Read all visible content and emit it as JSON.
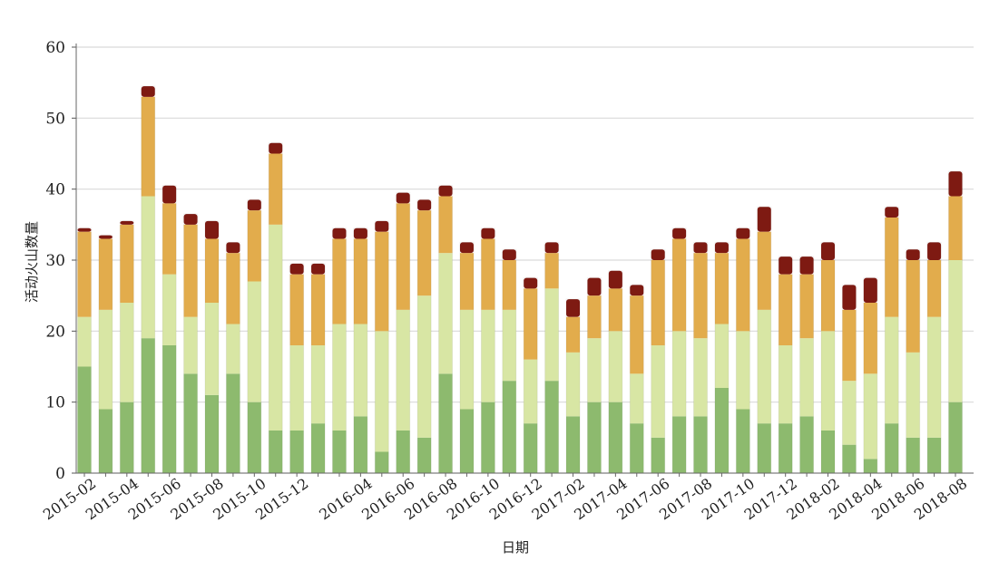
{
  "chart_data": {
    "type": "bar",
    "stacked": true,
    "title": "",
    "xlabel": "日期",
    "ylabel": "活动火山数量",
    "ylim": [
      0,
      60
    ],
    "yticks": [
      0,
      10,
      20,
      30,
      40,
      50,
      60
    ],
    "grid": true,
    "legend": "none",
    "categories": [
      "2015-02",
      "2015-03",
      "2015-04",
      "2015-05",
      "2015-06",
      "2015-07",
      "2015-08",
      "2015-09",
      "2015-10",
      "2015-11",
      "2015-12",
      "2016-01",
      "2016-02",
      "2016-04",
      "2016-05",
      "2016-06",
      "2016-07",
      "2016-08",
      "2016-09",
      "2016-10",
      "2016-11",
      "2016-12",
      "2017-01",
      "2017-02",
      "2017-03",
      "2017-04",
      "2017-05",
      "2017-06",
      "2017-07",
      "2017-08",
      "2017-09",
      "2017-10",
      "2017-11",
      "2017-12",
      "2018-01",
      "2018-02",
      "2018-03",
      "2018-04",
      "2018-05",
      "2018-06",
      "2018-07",
      "2018-08"
    ],
    "tick_labels": [
      "2015-02",
      "2015-04",
      "2015-06",
      "2015-08",
      "2015-10",
      "2015-12",
      "2016-04",
      "2016-06",
      "2016-08",
      "2016-10",
      "2016-12",
      "2017-02",
      "2017-04",
      "2017-06",
      "2017-08",
      "2017-10",
      "2017-12",
      "2018-02",
      "2018-04",
      "2018-06",
      "2018-08"
    ],
    "series": [
      {
        "color": "#8dba6e",
        "values": [
          15,
          9,
          10,
          19,
          18,
          14,
          11,
          14,
          10,
          6,
          6,
          7,
          6,
          8,
          3,
          6,
          5,
          14,
          9,
          10,
          13,
          7,
          13,
          8,
          10,
          10,
          7,
          5,
          8,
          8,
          12,
          9,
          7,
          7,
          8,
          6,
          4,
          2,
          7,
          5,
          5,
          10
        ]
      },
      {
        "color": "#d8e6a4",
        "values": [
          7,
          14,
          14,
          20,
          10,
          8,
          13,
          7,
          17,
          29,
          12,
          11,
          15,
          13,
          17,
          17,
          20,
          17,
          14,
          13,
          10,
          9,
          13,
          9,
          9,
          10,
          7,
          13,
          12,
          11,
          9,
          11,
          16,
          11,
          11,
          14,
          9,
          12,
          15,
          12,
          17,
          20
        ]
      },
      {
        "color": "#e2ac4c",
        "values": [
          12,
          10,
          11,
          14,
          10,
          13,
          9,
          10,
          10,
          10,
          10,
          10,
          12,
          12,
          14,
          15,
          12,
          8,
          8,
          10,
          7,
          10,
          5,
          5,
          6,
          6,
          11,
          12,
          13,
          12,
          10,
          13,
          11,
          10,
          9,
          10,
          10,
          10,
          14,
          13,
          8,
          9
        ]
      },
      {
        "color": "#7e1a12",
        "values": [
          0.5,
          0.5,
          0.5,
          1.5,
          2.5,
          1.5,
          2.5,
          1.5,
          1.5,
          1.5,
          1.5,
          1.5,
          1.5,
          1.5,
          1.5,
          1.5,
          1.5,
          1.5,
          1.5,
          1.5,
          1.5,
          1.5,
          1.5,
          2.5,
          2.5,
          2.5,
          1.5,
          1.5,
          1.5,
          1.5,
          1.5,
          1.5,
          3.5,
          2.5,
          2.5,
          2.5,
          3.5,
          3.5,
          1.5,
          1.5,
          2.5,
          3.5
        ]
      }
    ]
  }
}
